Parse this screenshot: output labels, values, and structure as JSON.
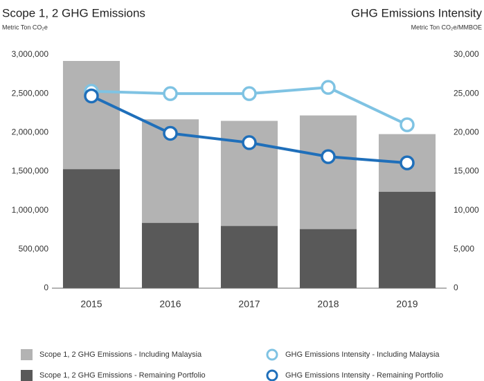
{
  "chart_data": {
    "type": "bar",
    "title": "Scope 1, 2 GHG Emissions",
    "subtitle": "Metric Ton CO₂e",
    "y2_title": "GHG Emissions Intensity",
    "y2_subtitle": "Metric Ton CO₂e/MMBOE",
    "categories": [
      "2015",
      "2016",
      "2017",
      "2018",
      "2019"
    ],
    "series": [
      {
        "name": "Scope 1, 2 GHG Emissions - Remaining Portfolio",
        "color": "#595959",
        "type": "bar",
        "values": [
          1530000,
          840000,
          800000,
          760000,
          1240000
        ]
      },
      {
        "name": "Scope 1, 2 GHG Emissions - Including Malaysia",
        "color": "#b3b3b3",
        "type": "bar",
        "values": [
          1390000,
          1330000,
          1350000,
          1460000,
          740000
        ]
      },
      {
        "name": "GHG Emissions Intensity - Including Malaysia",
        "color": "#7fc3e3",
        "type": "line",
        "axis": "y2",
        "values": [
          25300,
          25000,
          25000,
          25800,
          21000
        ]
      },
      {
        "name": "GHG Emissions Intensity - Remaining Portfolio",
        "color": "#1f6fba",
        "type": "line",
        "axis": "y2",
        "values": [
          24700,
          19900,
          18700,
          16900,
          16100
        ]
      }
    ],
    "ylim": [
      0,
      3000000
    ],
    "yticks": [
      0,
      {
        "value": 500000,
        "label": "500,000"
      },
      {
        "value": 1000000,
        "label": "1,000,000"
      },
      {
        "value": 1500000,
        "label": "1,500,000"
      },
      {
        "value": 2000000,
        "label": "2,000,000"
      },
      {
        "value": 2500000,
        "label": "2,500,000"
      },
      {
        "value": 3000000,
        "label": "3,000,000"
      }
    ],
    "y2lim": [
      0,
      30000
    ],
    "y2ticks": [
      0,
      {
        "value": 5000,
        "label": "5,000"
      },
      {
        "value": 10000,
        "label": "10,000"
      },
      {
        "value": 15000,
        "label": "15,000"
      },
      {
        "value": 20000,
        "label": "20,000"
      },
      {
        "value": 25000,
        "label": "25,000"
      },
      {
        "value": 30000,
        "label": "30,000"
      }
    ],
    "grid": false
  }
}
